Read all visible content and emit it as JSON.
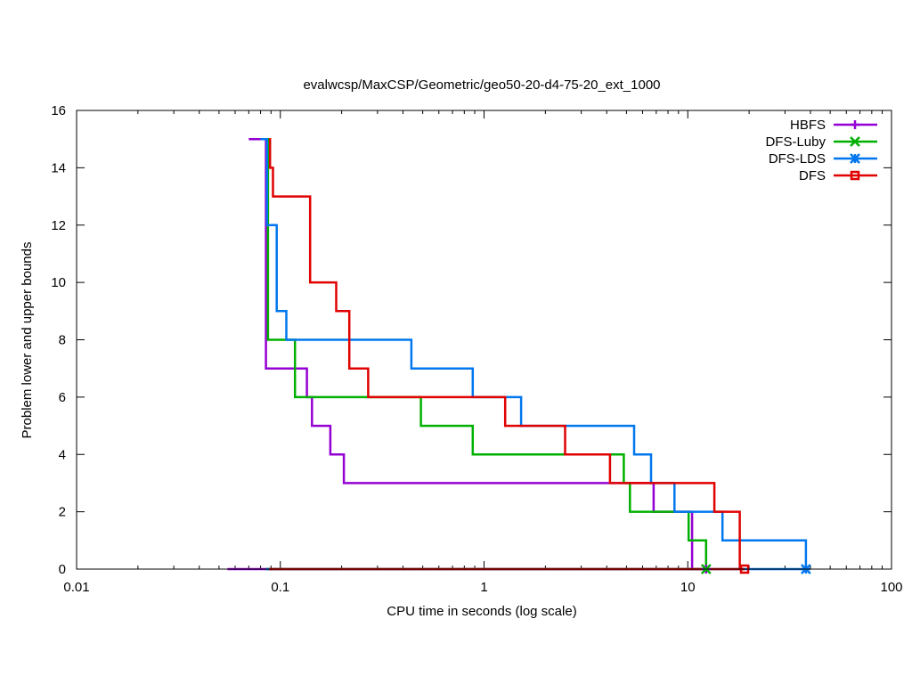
{
  "chart_data": {
    "type": "line",
    "title": "evalwcsp/MaxCSP/Geometric/geo50-20-d4-75-20_ext_1000",
    "xlabel": "CPU time in seconds (log scale)",
    "ylabel": "Problem lower and upper bounds",
    "xscale": "log",
    "xlim": [
      0.01,
      100
    ],
    "ylim": [
      0,
      16
    ],
    "x_ticks": [
      0.01,
      0.1,
      1,
      10,
      100
    ],
    "x_tick_labels": [
      "0.01",
      "0.1",
      "1",
      "10",
      "100"
    ],
    "y_ticks": [
      0,
      2,
      4,
      6,
      8,
      10,
      12,
      14,
      16
    ],
    "y_tick_labels": [
      "0",
      "2",
      "4",
      "6",
      "8",
      "10",
      "12",
      "14",
      "16"
    ],
    "legend_position": "top-right",
    "series": [
      {
        "name": "HBFS",
        "color": "#9400d3",
        "marker": "plus",
        "upper": [
          [
            0.07,
            15
          ],
          [
            0.085,
            15
          ],
          [
            0.085,
            7
          ],
          [
            0.135,
            7
          ],
          [
            0.135,
            6
          ],
          [
            0.143,
            6
          ],
          [
            0.143,
            5
          ],
          [
            0.176,
            5
          ],
          [
            0.176,
            4
          ],
          [
            0.205,
            4
          ],
          [
            0.205,
            3
          ],
          [
            6.8,
            3
          ],
          [
            6.8,
            2
          ],
          [
            10.5,
            2
          ],
          [
            10.5,
            0
          ],
          [
            12.3,
            0
          ]
        ],
        "lower": [
          [
            0.055,
            0
          ],
          [
            12.3,
            0
          ]
        ],
        "end_marker": [
          12.3,
          0
        ]
      },
      {
        "name": "DFS-Luby",
        "color": "#00b000",
        "marker": "cross",
        "upper": [
          [
            0.085,
            15
          ],
          [
            0.087,
            15
          ],
          [
            0.087,
            8
          ],
          [
            0.118,
            8
          ],
          [
            0.118,
            6
          ],
          [
            0.49,
            6
          ],
          [
            0.49,
            5
          ],
          [
            0.88,
            5
          ],
          [
            0.88,
            4
          ],
          [
            4.85,
            4
          ],
          [
            4.85,
            3
          ],
          [
            5.2,
            3
          ],
          [
            5.2,
            2
          ],
          [
            10.1,
            2
          ],
          [
            10.1,
            1
          ],
          [
            12.3,
            1
          ],
          [
            12.3,
            0
          ]
        ],
        "lower": [
          [
            0.085,
            0
          ],
          [
            12.3,
            0
          ]
        ],
        "end_marker": [
          12.3,
          0
        ]
      },
      {
        "name": "DFS-LDS",
        "color": "#0077ee",
        "marker": "star",
        "upper": [
          [
            0.08,
            15
          ],
          [
            0.086,
            15
          ],
          [
            0.086,
            12
          ],
          [
            0.096,
            12
          ],
          [
            0.096,
            9
          ],
          [
            0.107,
            9
          ],
          [
            0.107,
            8
          ],
          [
            0.44,
            8
          ],
          [
            0.44,
            7
          ],
          [
            0.88,
            7
          ],
          [
            0.88,
            6
          ],
          [
            1.52,
            6
          ],
          [
            1.52,
            5
          ],
          [
            5.45,
            5
          ],
          [
            5.45,
            4
          ],
          [
            6.6,
            4
          ],
          [
            6.6,
            3
          ],
          [
            8.6,
            3
          ],
          [
            8.6,
            2
          ],
          [
            14.8,
            2
          ],
          [
            14.8,
            1
          ],
          [
            38,
            1
          ],
          [
            38,
            0
          ]
        ],
        "lower": [
          [
            0.085,
            0
          ],
          [
            38,
            0
          ]
        ],
        "end_marker": [
          38,
          0
        ]
      },
      {
        "name": "DFS",
        "color": "#e00000",
        "marker": "square",
        "upper": [
          [
            0.088,
            15
          ],
          [
            0.089,
            15
          ],
          [
            0.089,
            14
          ],
          [
            0.092,
            14
          ],
          [
            0.092,
            13
          ],
          [
            0.14,
            13
          ],
          [
            0.14,
            10
          ],
          [
            0.188,
            10
          ],
          [
            0.188,
            9
          ],
          [
            0.218,
            9
          ],
          [
            0.218,
            7
          ],
          [
            0.27,
            7
          ],
          [
            0.27,
            6
          ],
          [
            1.27,
            6
          ],
          [
            1.27,
            5
          ],
          [
            2.5,
            5
          ],
          [
            2.5,
            4
          ],
          [
            4.15,
            4
          ],
          [
            4.15,
            3
          ],
          [
            13.5,
            3
          ],
          [
            13.5,
            2
          ],
          [
            18,
            2
          ],
          [
            18,
            0
          ],
          [
            19,
            0
          ]
        ],
        "lower": [
          [
            0.088,
            0
          ],
          [
            19,
            0
          ]
        ],
        "end_marker": [
          19,
          0
        ]
      }
    ]
  }
}
